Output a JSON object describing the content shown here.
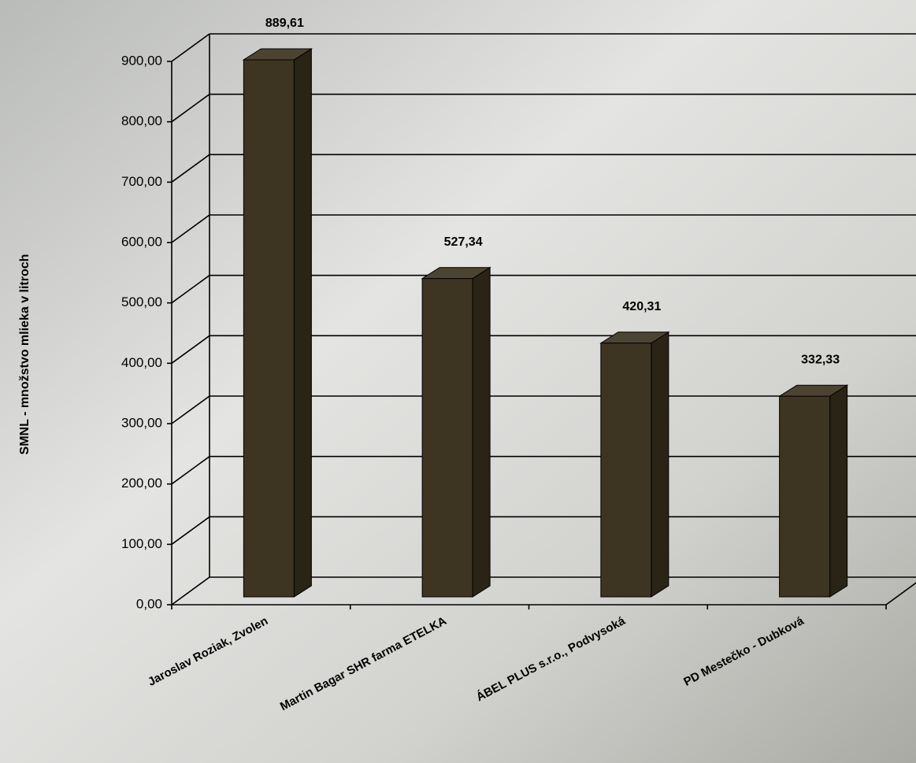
{
  "chart_data": {
    "type": "bar3d",
    "y_label": "SMNL - množstvo mlieka v litroch",
    "categories": [
      "Jaroslav Roziak, Zvolen",
      "Martin Bagar SHR farma ETELKA",
      "ÁBEL PLUS s.r.o., Podvysoká",
      "PD Mestečko - Dubková"
    ],
    "values": [
      889.61,
      527.34,
      420.31,
      332.33
    ],
    "value_labels": [
      "889,61",
      "527,34",
      "420,31",
      "332,33"
    ],
    "color": "#3d3522",
    "ylim": [
      0,
      900
    ],
    "yticks": [
      {
        "value": 0,
        "label": "0,00"
      },
      {
        "value": 100,
        "label": "100,00"
      },
      {
        "value": 200,
        "label": "200,00"
      },
      {
        "value": 300,
        "label": "300,00"
      },
      {
        "value": 400,
        "label": "400,00"
      },
      {
        "value": 500,
        "label": "500,00"
      },
      {
        "value": 600,
        "label": "600,00"
      },
      {
        "value": 700,
        "label": "700,00"
      },
      {
        "value": 800,
        "label": "800,00"
      },
      {
        "value": 900,
        "label": "900,00"
      }
    ],
    "grid": true
  }
}
